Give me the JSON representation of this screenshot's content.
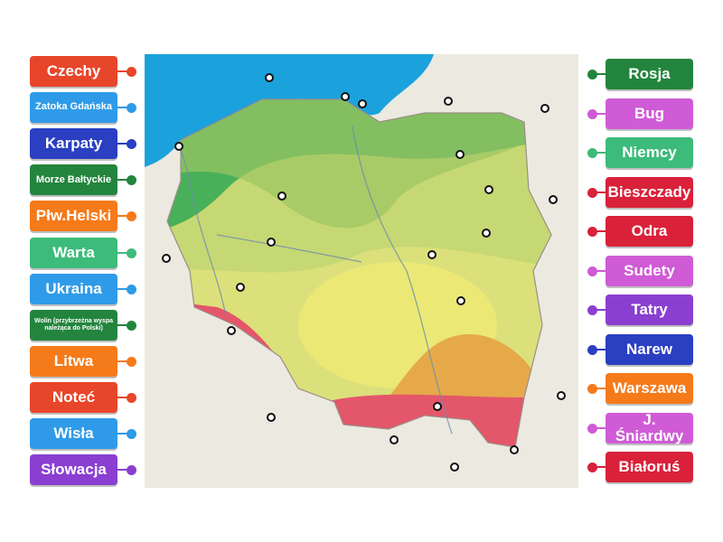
{
  "left_labels": [
    {
      "text": "Czechy",
      "color": "#e8462a"
    },
    {
      "text": "Zatoka Gdańska",
      "color": "#2f9be8"
    },
    {
      "text": "Karpaty",
      "color": "#2a3fc2"
    },
    {
      "text": "Morze Bałtyckie",
      "color": "#23853d"
    },
    {
      "text": "Płw.Helski",
      "color": "#f57a1a"
    },
    {
      "text": "Warta",
      "color": "#3dbb7a"
    },
    {
      "text": "Ukraina",
      "color": "#2f9be8"
    },
    {
      "text": "Wolin (przybrzeżna wyspa należąca do Polski)",
      "color": "#23853d"
    },
    {
      "text": "Litwa",
      "color": "#f57a1a"
    },
    {
      "text": "Noteć",
      "color": "#e8462a"
    },
    {
      "text": "Wisła",
      "color": "#2f9be8"
    },
    {
      "text": "Słowacja",
      "color": "#8a3fd0"
    }
  ],
  "right_labels": [
    {
      "text": "Rosja",
      "color": "#23853d"
    },
    {
      "text": "Bug",
      "color": "#cf5bd6"
    },
    {
      "text": "Niemcy",
      "color": "#3dbb7a"
    },
    {
      "text": "Bieszczady",
      "color": "#d9213a"
    },
    {
      "text": "Odra",
      "color": "#d9213a"
    },
    {
      "text": "Sudety",
      "color": "#cf5bd6"
    },
    {
      "text": "Tatry",
      "color": "#8a3fd0"
    },
    {
      "text": "Narew",
      "color": "#2a3fc2"
    },
    {
      "text": "Warszawa",
      "color": "#f57a1a"
    },
    {
      "text": "J. Śniardwy",
      "color": "#cf5bd6"
    },
    {
      "text": "Białoruś",
      "color": "#d9213a"
    }
  ]
}
